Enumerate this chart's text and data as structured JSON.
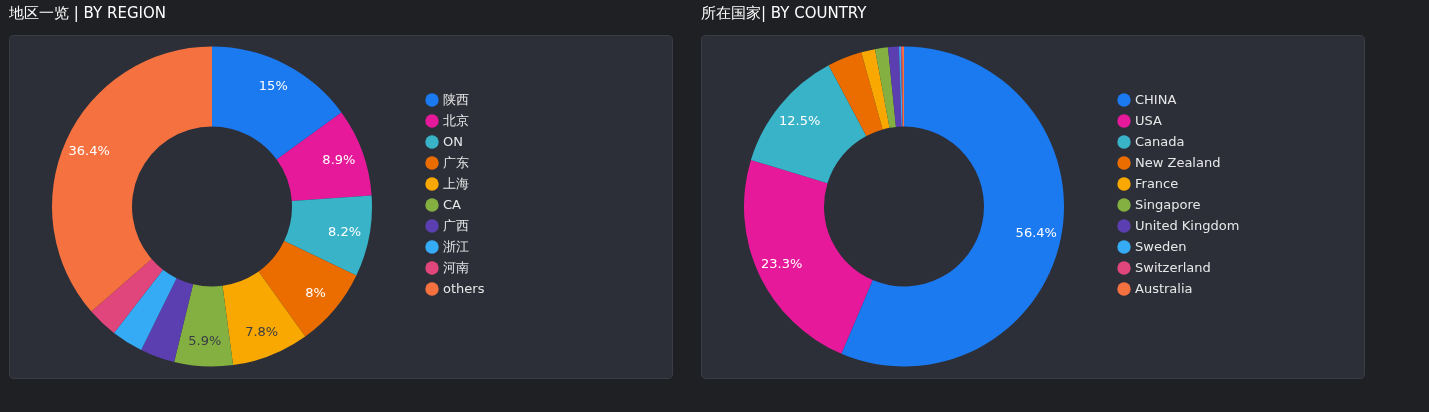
{
  "chart_data": [
    {
      "type": "donut",
      "title": "地区一览 | BY REGION",
      "categories": [
        "陕西",
        "北京",
        "ON",
        "广东",
        "上海",
        "CA",
        "广西",
        "浙江",
        "河南",
        "others"
      ],
      "values": [
        15,
        8.9,
        8.2,
        8,
        7.8,
        5.9,
        3.5,
        3.2,
        3.1,
        36.4
      ],
      "value_labels": [
        "15%",
        "8.9%",
        "8.2%",
        "8%",
        "7.8%",
        "5.9%",
        null,
        null,
        null,
        "36.4%"
      ],
      "colors": [
        "#1c7af0",
        "#e6199a",
        "#38b3c8",
        "#eb6d00",
        "#f8a800",
        "#84b041",
        "#5b3fb0",
        "#35abf5",
        "#e0457b",
        "#f57240"
      ],
      "legend": "right"
    },
    {
      "type": "donut",
      "title": "所在国家| BY COUNTRY",
      "categories": [
        "CHINA",
        "USA",
        "Canada",
        "New Zealand",
        "France",
        "Singapore",
        "United Kingdom",
        "Sweden",
        "Switzerland",
        "Australia"
      ],
      "values": [
        56.4,
        23.3,
        12.5,
        3.5,
        1.4,
        1.3,
        1.1,
        0.2,
        0.1,
        0.2
      ],
      "value_labels": [
        "56.4%",
        "23.3%",
        "12.5%",
        null,
        null,
        null,
        null,
        null,
        null,
        null
      ],
      "colors": [
        "#1c7af0",
        "#e6199a",
        "#38b3c8",
        "#eb6d00",
        "#f8a800",
        "#84b041",
        "#5b3fb0",
        "#35abf5",
        "#e0457b",
        "#f57240"
      ],
      "legend": "right"
    }
  ]
}
